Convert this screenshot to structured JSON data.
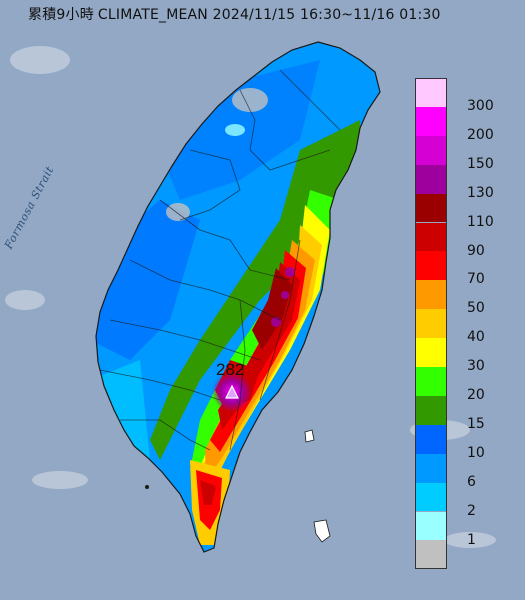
{
  "header": {
    "title_cjk": "累積9小時",
    "title_product": "CLIMATE_MEAN",
    "time_range": "2024/11/15 16:30~11/16 01:30"
  },
  "map": {
    "strait_label": "Formosa Strait",
    "max_value_label": "282",
    "marker_icon": "triangle-marker-icon"
  },
  "legend": {
    "items": [
      {
        "label": "300",
        "color": "#ffc8ff"
      },
      {
        "label": "200",
        "color": "#ff00ff"
      },
      {
        "label": "150",
        "color": "#d400d4"
      },
      {
        "label": "130",
        "color": "#9e009e"
      },
      {
        "label": "110",
        "color": "#9b0000"
      },
      {
        "label": "90",
        "color": "#cc0000"
      },
      {
        "label": "70",
        "color": "#ff0000"
      },
      {
        "label": "50",
        "color": "#ff9900"
      },
      {
        "label": "40",
        "color": "#ffcc00"
      },
      {
        "label": "30",
        "color": "#ffff00"
      },
      {
        "label": "20",
        "color": "#33ff00"
      },
      {
        "label": "15",
        "color": "#339900"
      },
      {
        "label": "10",
        "color": "#0066ff"
      },
      {
        "label": "6",
        "color": "#0099ff"
      },
      {
        "label": "2",
        "color": "#00ccff"
      },
      {
        "label": "1",
        "color": "#99ffff"
      },
      {
        "label": "",
        "color": "#c0c0c0"
      }
    ]
  }
}
